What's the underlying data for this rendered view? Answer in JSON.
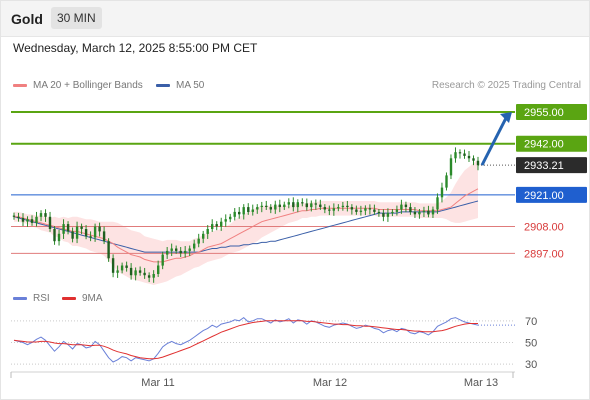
{
  "header": {
    "symbol": "Gold",
    "timeframe": "30 MIN",
    "timestamp": "Wednesday, March 12, 2025 8:55:00 PM CET"
  },
  "legend": {
    "ma20": "MA 20 + Bollinger Bands",
    "ma50": "MA 50",
    "credit": "Research © 2025 Trading Central",
    "rsi": "RSI",
    "ma9": "9MA"
  },
  "colors": {
    "ma20": "#f08080",
    "ma50": "#3a5fa8",
    "band": "#fde3e3",
    "target": "#5aa512",
    "resistance": "#5aa512",
    "current": "#2b2b2b",
    "pivot": "#1f5fcf",
    "support": "#e07b7b",
    "arrow": "#2563b0",
    "candle": "#2a8a2a",
    "rsi": "#6a80d8",
    "rsi_ma": "#e03030"
  },
  "chart_data": [
    {
      "type": "candlestick",
      "panel": "price",
      "ylim": [
        2884,
        2962
      ],
      "x_ticks": [
        "Mar 11",
        "Mar 12",
        "Mar 13"
      ],
      "levels": [
        {
          "label": "2955.00",
          "value": 2955.0,
          "kind": "target"
        },
        {
          "label": "2942.00",
          "value": 2942.0,
          "kind": "resistance"
        },
        {
          "label": "2933.21",
          "value": 2933.21,
          "kind": "current"
        },
        {
          "label": "2921.00",
          "value": 2921.0,
          "kind": "pivot"
        },
        {
          "label": "2908.00",
          "value": 2908.0,
          "kind": "support"
        },
        {
          "label": "2897.00",
          "value": 2897.0,
          "kind": "support"
        }
      ],
      "close": [
        2912,
        2911.5,
        2910,
        2911,
        2909.5,
        2912,
        2913.5,
        2912,
        2907,
        2902,
        2905,
        2909,
        2906,
        2903,
        2908,
        2907,
        2904,
        2903.5,
        2908,
        2906,
        2902,
        2895,
        2889,
        2890,
        2892,
        2891,
        2888,
        2890,
        2889,
        2888,
        2887,
        2888.5,
        2892,
        2896.5,
        2898,
        2899,
        2898,
        2897,
        2898,
        2899,
        2901,
        2903,
        2905,
        2907,
        2909,
        2908,
        2910,
        2911,
        2912,
        2914,
        2913,
        2916,
        2914,
        2915,
        2916,
        2916.5,
        2916,
        2915,
        2917,
        2916,
        2917,
        2918,
        2916,
        2918,
        2917.5,
        2916,
        2917.5,
        2917,
        2916,
        2915,
        2914.5,
        2915.5,
        2916,
        2916.5,
        2916,
        2915,
        2914,
        2914.5,
        2915.5,
        2915,
        2914,
        2913.5,
        2912,
        2913.5,
        2914,
        2915,
        2917,
        2916,
        2914,
        2913,
        2914,
        2914.5,
        2913,
        2915,
        2920,
        2924,
        2929,
        2936,
        2938.5,
        2938,
        2937,
        2936,
        2935,
        2933.21
      ],
      "ma20": [
        2912,
        2912,
        2911.5,
        2911,
        2910.5,
        2910,
        2909.5,
        2909,
        2908.5,
        2908,
        2907.5,
        2907,
        2906.5,
        2906,
        2906,
        2905.5,
        2905,
        2904.5,
        2904,
        2903.5,
        2903,
        2902,
        2901,
        2899.5,
        2898.5,
        2897.5,
        2896.5,
        2896,
        2895.5,
        2894.5,
        2894,
        2893.5,
        2893.5,
        2893.5,
        2894,
        2894.5,
        2895,
        2895,
        2895.5,
        2896,
        2897,
        2897.5,
        2898.5,
        2899.5,
        2900,
        2900.5,
        2901,
        2902,
        2903,
        2904,
        2905,
        2906,
        2907,
        2908,
        2909,
        2910,
        2910.5,
        2911,
        2911.5,
        2912,
        2912.5,
        2913,
        2913.5,
        2914,
        2914.5,
        2914.5,
        2915,
        2915,
        2915.5,
        2915.5,
        2915.5,
        2915.5,
        2915.5,
        2915.5,
        2915.5,
        2915.5,
        2915.5,
        2915.5,
        2915.5,
        2915.5,
        2915.5,
        2915,
        2915,
        2915,
        2915,
        2915,
        2915,
        2915,
        2915,
        2915,
        2914.5,
        2914.5,
        2914.5,
        2914.5,
        2914.5,
        2915,
        2915.5,
        2916,
        2917.5,
        2919,
        2920.5,
        2921.5,
        2922.5,
        2923.5
      ],
      "ma50": [
        2912,
        2911.5,
        2911,
        2910.5,
        2910,
        2909.5,
        2909,
        2908.5,
        2908,
        2907.5,
        2907,
        2906.5,
        2906,
        2905.5,
        2905,
        2904.5,
        2904,
        2903.5,
        2903,
        2902.5,
        2902,
        2901.5,
        2901,
        2900.5,
        2900,
        2899.5,
        2899,
        2898.5,
        2898,
        2897.5,
        2897.5,
        2897.5,
        2897.5,
        2897.5,
        2897.5,
        2897.5,
        2897.5,
        2897.5,
        2897.5,
        2897.5,
        2897.5,
        2897.5,
        2898,
        2898.5,
        2899,
        2899,
        2899.5,
        2899.5,
        2900,
        2900,
        2900,
        2900.5,
        2900.5,
        2901,
        2901,
        2901.5,
        2901.5,
        2902,
        2902,
        2902.5,
        2903,
        2903.5,
        2904,
        2904.5,
        2905,
        2905.5,
        2906,
        2906.5,
        2907,
        2907.5,
        2908,
        2908.5,
        2909,
        2909.5,
        2910,
        2910.5,
        2911,
        2911.5,
        2912,
        2912.5,
        2913,
        2913.5,
        2913.5,
        2913.5,
        2913.5,
        2913.5,
        2914,
        2914,
        2914,
        2914,
        2914,
        2914,
        2914,
        2914,
        2914,
        2914.5,
        2915,
        2915.5,
        2916,
        2916.5,
        2917,
        2917.5,
        2918,
        2918.5
      ],
      "band_halfwidth": [
        2,
        2,
        2,
        2,
        2.5,
        2.5,
        3,
        3,
        3,
        4,
        4,
        5,
        5,
        6,
        6,
        6,
        6,
        6.5,
        6.5,
        6.5,
        7,
        8,
        9,
        10,
        10,
        10,
        10,
        10,
        10,
        9.5,
        9.5,
        9.5,
        9,
        8.5,
        8.5,
        8,
        7.5,
        7,
        6.5,
        6,
        6,
        6,
        6,
        6,
        6,
        6,
        6,
        6,
        6,
        6.5,
        7,
        7,
        7,
        7,
        7,
        6.5,
        6,
        5.5,
        5,
        4.5,
        4,
        3.5,
        3.5,
        3.5,
        3,
        3,
        3,
        3,
        3,
        3,
        3,
        3,
        3,
        3,
        3,
        3,
        3,
        3,
        3,
        3,
        3,
        3,
        3,
        3,
        3,
        3,
        3,
        3,
        3,
        3,
        3,
        3,
        3,
        3,
        3,
        3.5,
        4.5,
        6,
        8,
        9.5,
        10.5,
        11,
        11.5,
        12
      ]
    },
    {
      "type": "line",
      "panel": "RSI",
      "ylim": [
        20,
        80
      ],
      "y_ticks": [
        70,
        50,
        30
      ],
      "series": [
        {
          "name": "RSI",
          "values": [
            52,
            51,
            50,
            48,
            50,
            53,
            55,
            52,
            47,
            42,
            46,
            51,
            48,
            44,
            49,
            48,
            45,
            46,
            51,
            48,
            42,
            36,
            32,
            34,
            37,
            36,
            33,
            36,
            35,
            34,
            33,
            35,
            40,
            46,
            49,
            51,
            49,
            48,
            50,
            52,
            55,
            58,
            61,
            63,
            66,
            64,
            67,
            68,
            69,
            71,
            70,
            73,
            69,
            70,
            72,
            72,
            70,
            68,
            71,
            69,
            70,
            72,
            68,
            71,
            70,
            67,
            70,
            69,
            67,
            65,
            64,
            66,
            67,
            68,
            67,
            65,
            63,
            64,
            66,
            65,
            63,
            62,
            59,
            61,
            62,
            60,
            63,
            62,
            59,
            58,
            60,
            59,
            57,
            60,
            65,
            67,
            69,
            72,
            73,
            71,
            69,
            68,
            67,
            66
          ]
        },
        {
          "name": "9MA",
          "values": [
            52,
            51.5,
            51,
            50.5,
            50.5,
            50.5,
            51,
            51,
            50.5,
            49.5,
            49,
            49,
            48.5,
            48,
            48,
            48,
            47.5,
            47,
            47.5,
            47.5,
            46.5,
            45,
            43,
            41.5,
            40.5,
            39.5,
            38,
            37,
            36,
            35.5,
            35,
            35,
            35.5,
            36.5,
            38,
            39.5,
            41,
            42.5,
            44,
            45.5,
            47.5,
            49.5,
            51.5,
            53.5,
            55.5,
            57.5,
            59.5,
            61,
            62.5,
            64,
            65.5,
            66.5,
            67.5,
            68.5,
            69,
            69.5,
            70,
            70,
            70,
            70,
            70,
            70,
            70,
            70,
            70,
            69.5,
            69.5,
            69,
            68.5,
            68,
            67.5,
            67,
            67,
            66.5,
            66.5,
            66,
            65.5,
            65.5,
            65,
            65,
            64.5,
            64,
            63.5,
            63,
            62.5,
            62,
            62,
            61.5,
            61,
            60.5,
            60.5,
            60,
            60,
            60,
            60.5,
            61,
            62,
            63.5,
            65,
            66,
            67,
            67.5,
            67.5,
            67.5
          ]
        }
      ]
    }
  ]
}
